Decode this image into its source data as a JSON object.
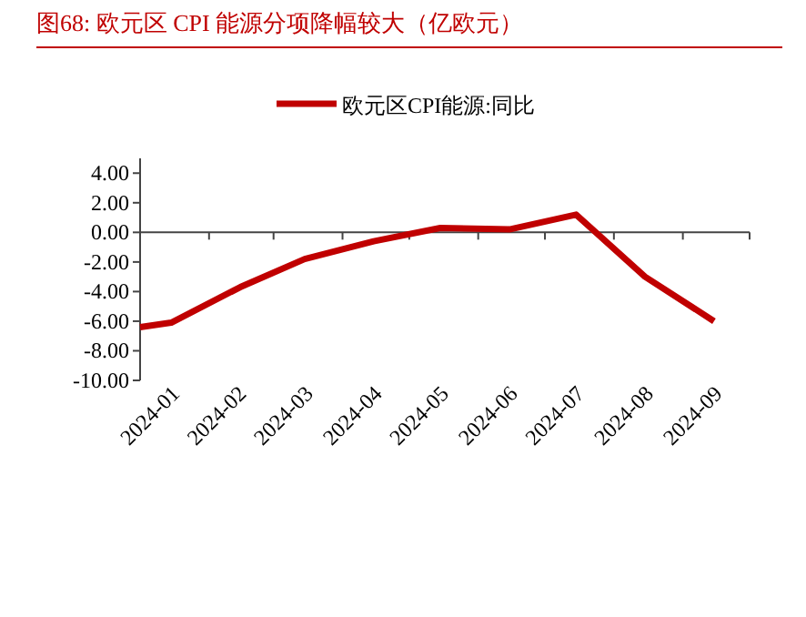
{
  "chart_data": {
    "type": "line",
    "title": "图68:  欧元区 CPI 能源分项降幅较大（亿欧元）",
    "x": [
      "2024-01-01",
      "2024-01-15",
      "2024-02-15",
      "2024-03-15",
      "2024-04-15",
      "2024-05-15",
      "2024-06-15",
      "2024-07-15",
      "2024-08-15",
      "2024-09-15"
    ],
    "series": [
      {
        "name": "欧元区CPI能源:同比",
        "color": "#c00000",
        "values": [
          -6.4,
          -6.1,
          -3.7,
          -1.8,
          -0.6,
          0.3,
          0.2,
          1.2,
          -3.0,
          -6.0
        ]
      }
    ],
    "xlim": [
      "2024-01-01",
      "2024-10-01"
    ],
    "xticks": [
      {
        "value": "2024-01-01",
        "label": null
      },
      {
        "value": "2024-02-01",
        "label": null
      },
      {
        "value": "2024-03-01",
        "label": null
      },
      {
        "value": "2024-04-01",
        "label": null
      },
      {
        "value": "2024-05-01",
        "label": null
      },
      {
        "value": "2024-06-01",
        "label": null
      },
      {
        "value": "2024-07-01",
        "label": null
      },
      {
        "value": "2024-08-01",
        "label": null
      },
      {
        "value": "2024-09-01",
        "label": null
      },
      {
        "value": "2024-10-01",
        "label": null
      },
      {
        "value": "2024-01-16",
        "label": "2024-01"
      },
      {
        "value": "2024-02-15",
        "label": "2024-02"
      },
      {
        "value": "2024-03-16",
        "label": "2024-03"
      },
      {
        "value": "2024-04-16",
        "label": "2024-04"
      },
      {
        "value": "2024-05-16",
        "label": "2024-05"
      },
      {
        "value": "2024-06-16",
        "label": "2024-06"
      },
      {
        "value": "2024-07-16",
        "label": "2024-07"
      },
      {
        "value": "2024-08-16",
        "label": "2024-08"
      },
      {
        "value": "2024-09-16",
        "label": "2024-09"
      }
    ],
    "ylim": [
      -10,
      5
    ],
    "yticks": [
      {
        "value": 4,
        "label": "4.00"
      },
      {
        "value": 2,
        "label": "2.00"
      },
      {
        "value": 0,
        "label": "0.00"
      },
      {
        "value": -2,
        "label": "-2.00"
      },
      {
        "value": -4,
        "label": "-4.00"
      },
      {
        "value": -6,
        "label": "-6.00"
      },
      {
        "value": -8,
        "label": "-8.00"
      },
      {
        "value": -10,
        "label": "-10.00"
      }
    ],
    "legend": "top",
    "marker": "none",
    "line_style": "solid"
  }
}
